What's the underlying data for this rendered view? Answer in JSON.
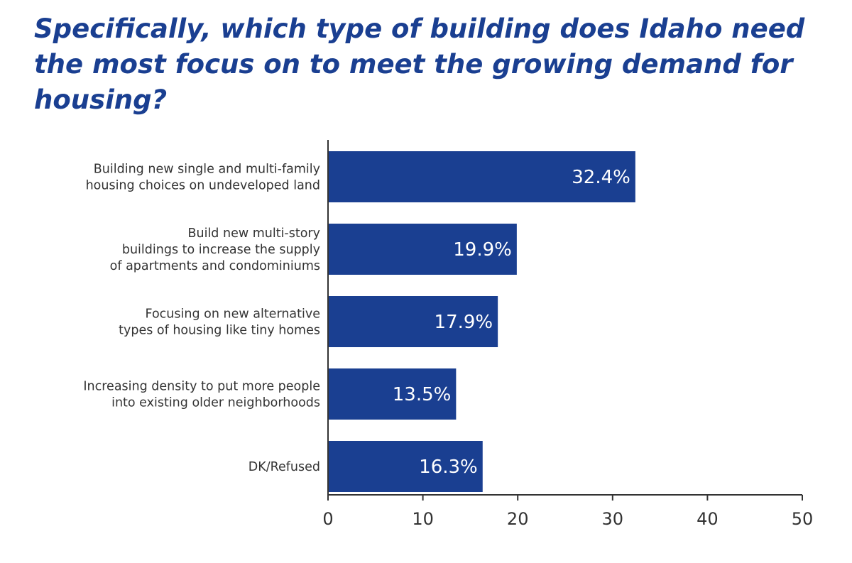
{
  "chart_data": {
    "type": "bar",
    "orientation": "horizontal",
    "title": "Specifically, which type of building does Idaho need the most focus on to meet the growing demand for housing?",
    "categories": [
      [
        "Building new single and multi-family",
        "housing choices on undeveloped land"
      ],
      [
        "Build new multi-story",
        "buildings to increase the supply",
        "of apartments and condominiums"
      ],
      [
        "Focusing on new alternative",
        "types of housing like tiny homes"
      ],
      [
        "Increasing density to put more people",
        "into existing older neighborhoods"
      ],
      [
        "DK/Refused"
      ]
    ],
    "values": [
      32.4,
      19.9,
      17.9,
      13.5,
      16.3
    ],
    "value_labels": [
      "32.4%",
      "19.9%",
      "17.9%",
      "13.5%",
      "16.3%"
    ],
    "xlim": [
      0,
      50
    ],
    "xticks": [
      0,
      10,
      20,
      30,
      40,
      50
    ],
    "xtick_labels": [
      "0",
      "10",
      "20",
      "30",
      "40",
      "50"
    ],
    "grid": false,
    "legend": "none",
    "colors": {
      "bar": "#1a3f91",
      "title": "#1a3f91",
      "axis": "#333333",
      "text": "#333333",
      "value_text": "#ffffff"
    }
  }
}
